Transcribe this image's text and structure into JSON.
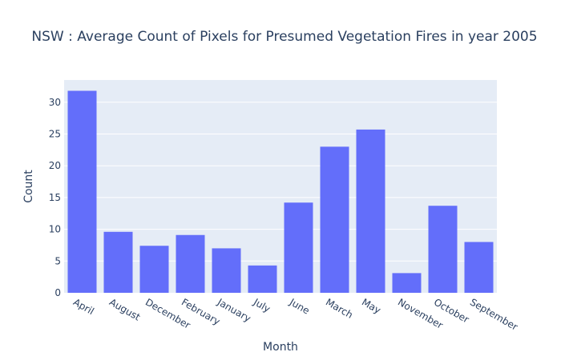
{
  "chart_data": {
    "type": "bar",
    "title": "NSW : Average Count of Pixels for Presumed Vegetation Fires in year 2005",
    "xlabel": "Month",
    "ylabel": "Count",
    "categories": [
      "April",
      "August",
      "December",
      "February",
      "January",
      "July",
      "June",
      "March",
      "May",
      "November",
      "October",
      "September"
    ],
    "values": [
      31.8,
      9.6,
      7.4,
      9.1,
      7.0,
      4.3,
      14.2,
      23.0,
      25.7,
      3.1,
      13.7,
      8.0
    ],
    "ylim": [
      0,
      33.5
    ],
    "yticks": [
      0,
      5,
      10,
      15,
      20,
      25,
      30
    ],
    "grid": true,
    "colors": {
      "bar": "#636efa",
      "plot_background": "#e5ecf6",
      "grid": "#ffffff",
      "text": "#2a3f5f"
    }
  }
}
